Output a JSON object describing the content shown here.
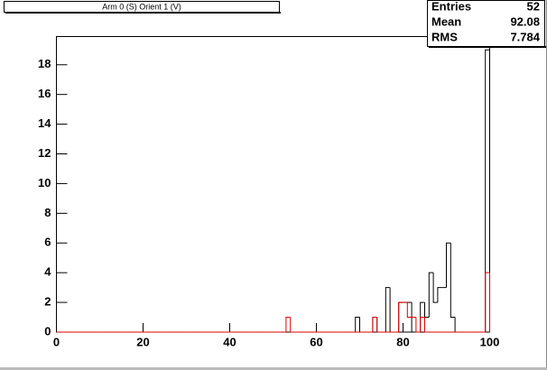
{
  "chart_data": {
    "type": "histogram",
    "title": "Arm 0 (S) Orient 1 (V)",
    "bins": [
      0,
      1,
      2,
      3,
      4,
      5,
      6,
      7,
      8,
      9,
      10,
      11,
      12,
      13,
      14,
      15,
      16,
      17,
      18,
      19,
      20,
      21,
      22,
      23,
      24,
      25,
      26,
      27,
      28,
      29,
      30,
      31,
      32,
      33,
      34,
      35,
      36,
      37,
      38,
      39,
      40,
      41,
      42,
      43,
      44,
      45,
      46,
      47,
      48,
      49,
      50,
      51,
      52,
      53,
      54,
      55,
      56,
      57,
      58,
      59,
      60,
      61,
      62,
      63,
      64,
      65,
      66,
      67,
      68,
      69,
      70,
      71,
      72,
      73,
      74,
      75,
      76,
      77,
      78,
      79,
      80,
      81,
      82,
      83,
      84,
      85,
      86,
      87,
      88,
      89,
      90,
      91,
      92,
      93,
      94,
      95,
      96,
      97,
      98,
      99,
      100
    ],
    "series": [
      {
        "color": "#000000",
        "values": [
          0,
          0,
          0,
          0,
          0,
          0,
          0,
          0,
          0,
          0,
          0,
          0,
          0,
          0,
          0,
          0,
          0,
          0,
          0,
          0,
          0,
          0,
          0,
          0,
          0,
          0,
          0,
          0,
          0,
          0,
          0,
          0,
          0,
          0,
          0,
          0,
          0,
          0,
          0,
          0,
          0,
          0,
          0,
          0,
          0,
          0,
          0,
          0,
          0,
          0,
          0,
          0,
          0,
          0,
          0,
          0,
          0,
          0,
          0,
          0,
          0,
          0,
          0,
          0,
          0,
          0,
          0,
          0,
          0,
          1,
          0,
          0,
          0,
          1,
          0,
          0,
          3,
          0,
          0,
          2,
          2,
          2,
          0,
          0,
          2,
          1,
          4,
          2,
          3,
          3,
          6,
          1,
          0,
          0,
          0,
          0,
          0,
          0,
          0,
          19
        ]
      },
      {
        "color": "#e00000",
        "values": [
          0,
          0,
          0,
          0,
          0,
          0,
          0,
          0,
          0,
          0,
          0,
          0,
          0,
          0,
          0,
          0,
          0,
          0,
          0,
          0,
          0,
          0,
          0,
          0,
          0,
          0,
          0,
          0,
          0,
          0,
          0,
          0,
          0,
          0,
          0,
          0,
          0,
          0,
          0,
          0,
          0,
          0,
          0,
          0,
          0,
          0,
          0,
          0,
          0,
          0,
          0,
          0,
          0,
          1,
          0,
          0,
          0,
          0,
          0,
          0,
          0,
          0,
          0,
          0,
          0,
          0,
          0,
          0,
          0,
          0,
          0,
          0,
          0,
          1,
          0,
          0,
          0,
          0,
          0,
          2,
          2,
          1,
          1,
          0,
          1,
          0,
          0,
          0,
          0,
          0,
          0,
          0,
          0,
          0,
          0,
          0,
          0,
          0,
          0,
          4
        ]
      }
    ],
    "xlim": [
      0,
      100
    ],
    "xticks": [
      0,
      20,
      40,
      60,
      80,
      100
    ],
    "ylim": [
      0,
      19.9
    ],
    "yticks": [
      0,
      2,
      4,
      6,
      8,
      10,
      12,
      14,
      16,
      18
    ],
    "stats": [
      {
        "label": "Entries",
        "value": 52
      },
      {
        "label": "Mean",
        "value": 92.08
      },
      {
        "label": "RMS",
        "value": 7.784
      }
    ]
  }
}
